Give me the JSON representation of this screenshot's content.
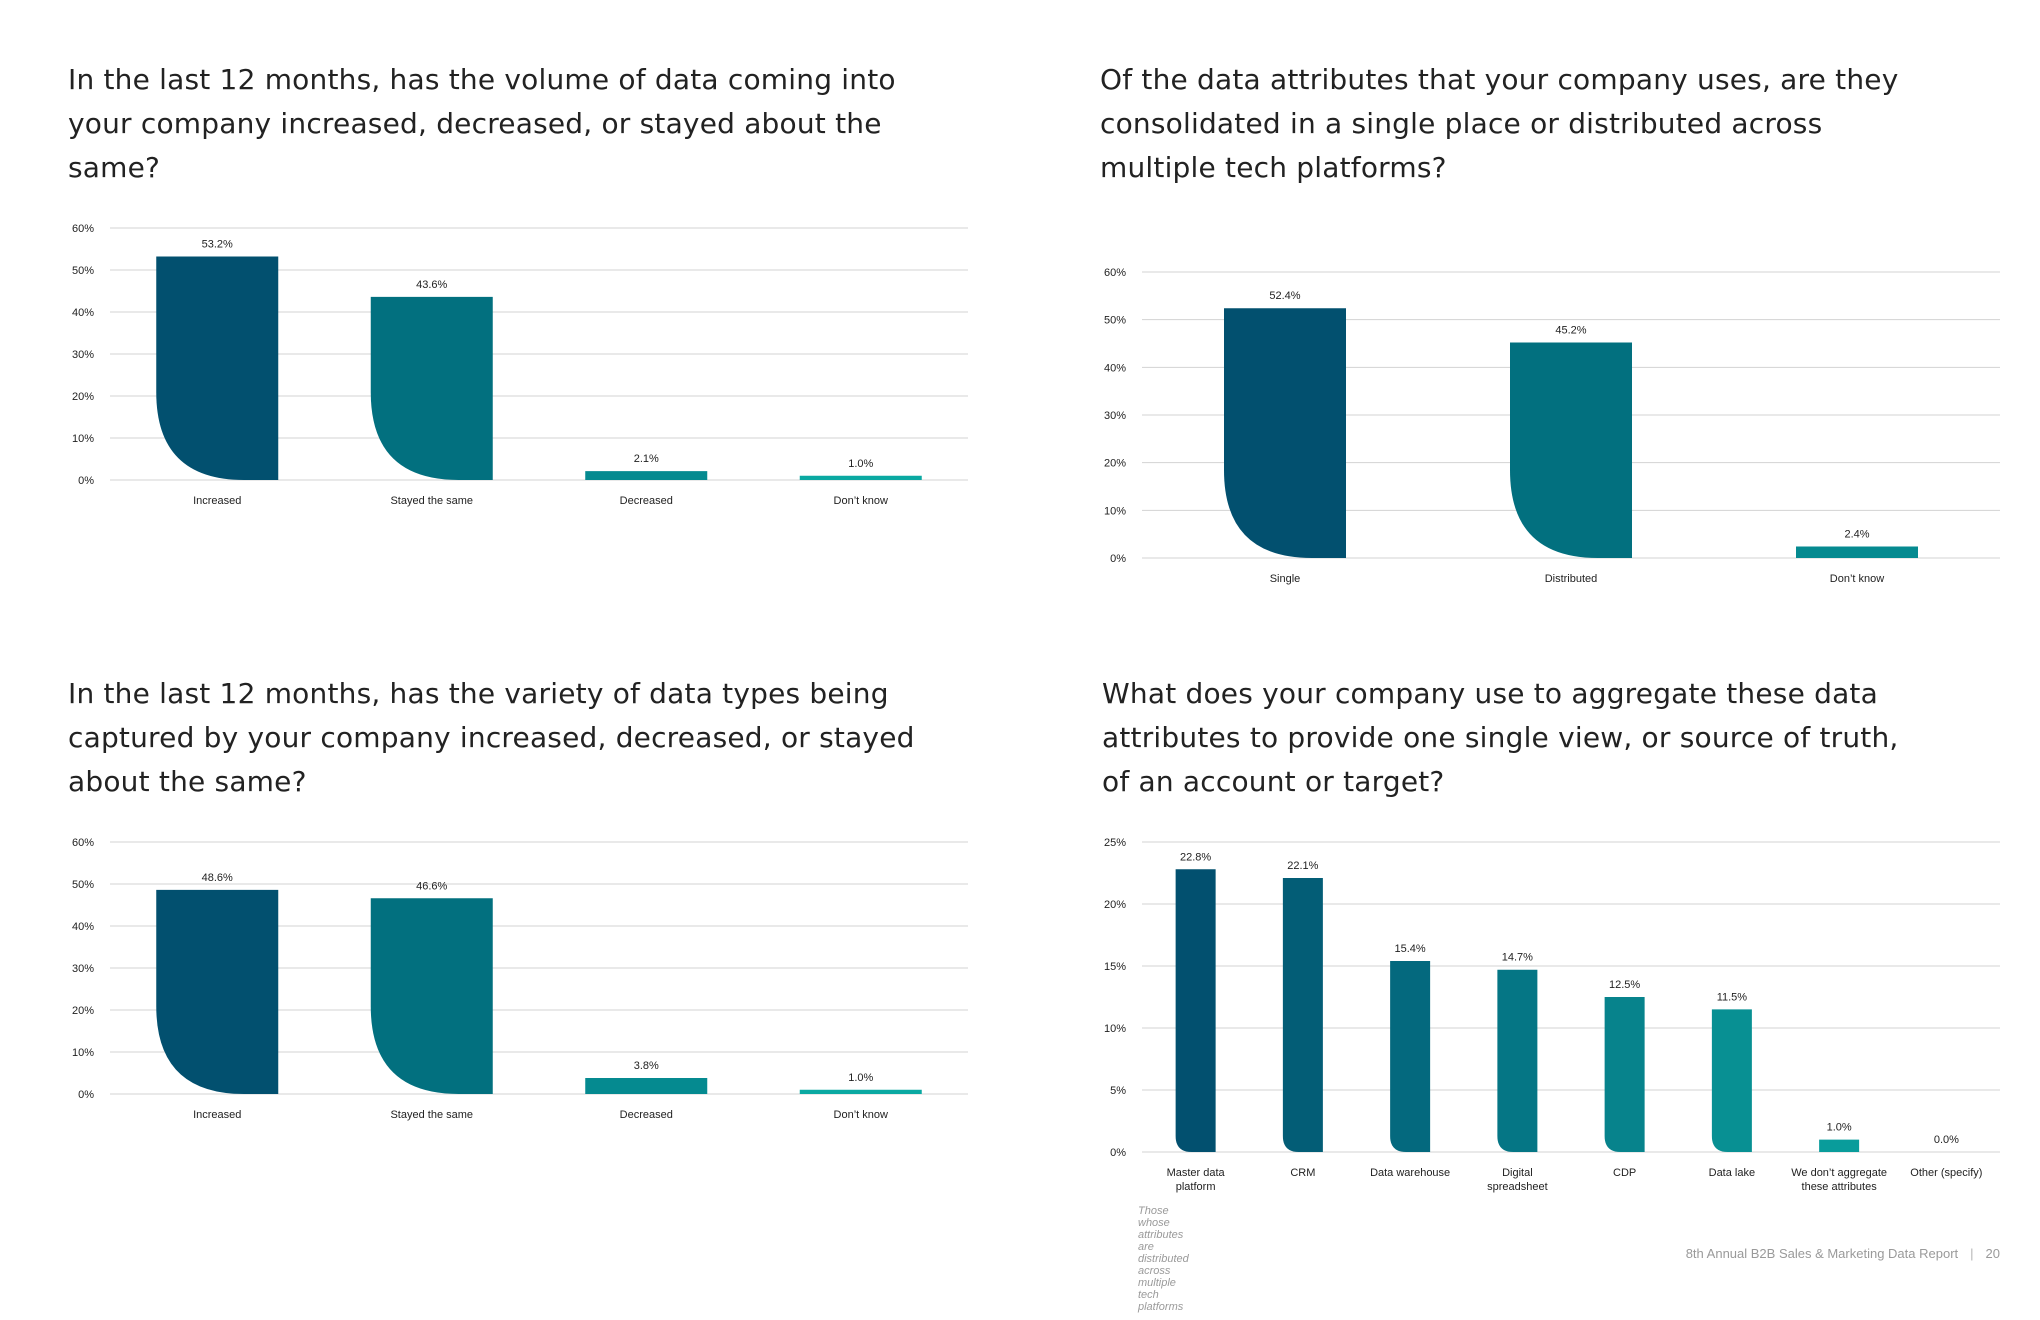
{
  "colors": {
    "series": [
      "#02506f",
      "#02707f",
      "#058a90",
      "#0aa9a2"
    ],
    "grid": "#d3d3d3",
    "text": "#222222"
  },
  "panels": [
    {
      "question": "In the last 12 months, has the volume of data coming into your company increased, decreased, or stayed about the same?",
      "chart_data": {
        "type": "bar",
        "categories": [
          "Increased",
          "Stayed the same",
          "Decreased",
          "Don’t know"
        ],
        "values": [
          53.2,
          43.6,
          2.1,
          1.0
        ],
        "data_labels": [
          "53.2%",
          "43.6%",
          "2.1%",
          "1.0%"
        ],
        "yticks": [
          "0%",
          "10%",
          "20%",
          "30%",
          "40%",
          "50%",
          "60%"
        ],
        "ylim": [
          0,
          60
        ],
        "grid": true,
        "xlabel": "",
        "ylabel": ""
      }
    },
    {
      "question": "Of the data attributes that your company uses, are they consolidated in a single place or distributed across multiple tech platforms?",
      "chart_data": {
        "type": "bar",
        "categories": [
          "Single",
          "Distributed",
          "Don’t know"
        ],
        "values": [
          52.4,
          45.2,
          2.4
        ],
        "data_labels": [
          "52.4%",
          "45.2%",
          "2.4%"
        ],
        "yticks": [
          "0%",
          "10%",
          "20%",
          "30%",
          "40%",
          "50%",
          "60%"
        ],
        "ylim": [
          0,
          60
        ],
        "grid": true,
        "xlabel": "",
        "ylabel": ""
      }
    },
    {
      "question": "In the last 12 months, has the variety of data types being captured by your company increased, decreased, or stayed about the same?",
      "chart_data": {
        "type": "bar",
        "categories": [
          "Increased",
          "Stayed the same",
          "Decreased",
          "Don’t know"
        ],
        "values": [
          48.6,
          46.6,
          3.8,
          1.0
        ],
        "data_labels": [
          "48.6%",
          "46.6%",
          "3.8%",
          "1.0%"
        ],
        "yticks": [
          "0%",
          "10%",
          "20%",
          "30%",
          "40%",
          "50%",
          "60%"
        ],
        "ylim": [
          0,
          60
        ],
        "grid": true,
        "xlabel": "",
        "ylabel": ""
      }
    },
    {
      "question": "What does your company use to aggregate these data attributes to provide one single view, or source of truth, of an account or target?",
      "chart_data": {
        "type": "bar",
        "categories": [
          "Master data platform",
          "CRM",
          "Data warehouse",
          "Digital spreadsheet",
          "CDP",
          "Data lake",
          "We don’t aggregate these attributes",
          "Other (specify)"
        ],
        "category_lines": [
          [
            "Master data",
            "platform"
          ],
          [
            "CRM"
          ],
          [
            "Data warehouse"
          ],
          [
            "Digital",
            "spreadsheet"
          ],
          [
            "CDP"
          ],
          [
            "Data lake"
          ],
          [
            "We don’t aggregate",
            "these attributes"
          ],
          [
            "Other (specify)"
          ]
        ],
        "values": [
          22.8,
          22.1,
          15.4,
          14.7,
          12.5,
          11.5,
          1.0,
          0.0
        ],
        "data_labels": [
          "22.8%",
          "22.1%",
          "15.4%",
          "14.7%",
          "12.5%",
          "11.5%",
          "1.0%",
          "0.0%"
        ],
        "yticks": [
          "0%",
          "5%",
          "10%",
          "15%",
          "20%",
          "25%"
        ],
        "ylim": [
          0,
          25
        ],
        "grid": true,
        "xlabel": "",
        "ylabel": ""
      }
    }
  ],
  "footnote": "Those whose attributes are distributed across multiple tech platforms",
  "footer": {
    "report": "8th Annual B2B Sales & Marketing Data Report",
    "separator": "|",
    "page": "20"
  }
}
